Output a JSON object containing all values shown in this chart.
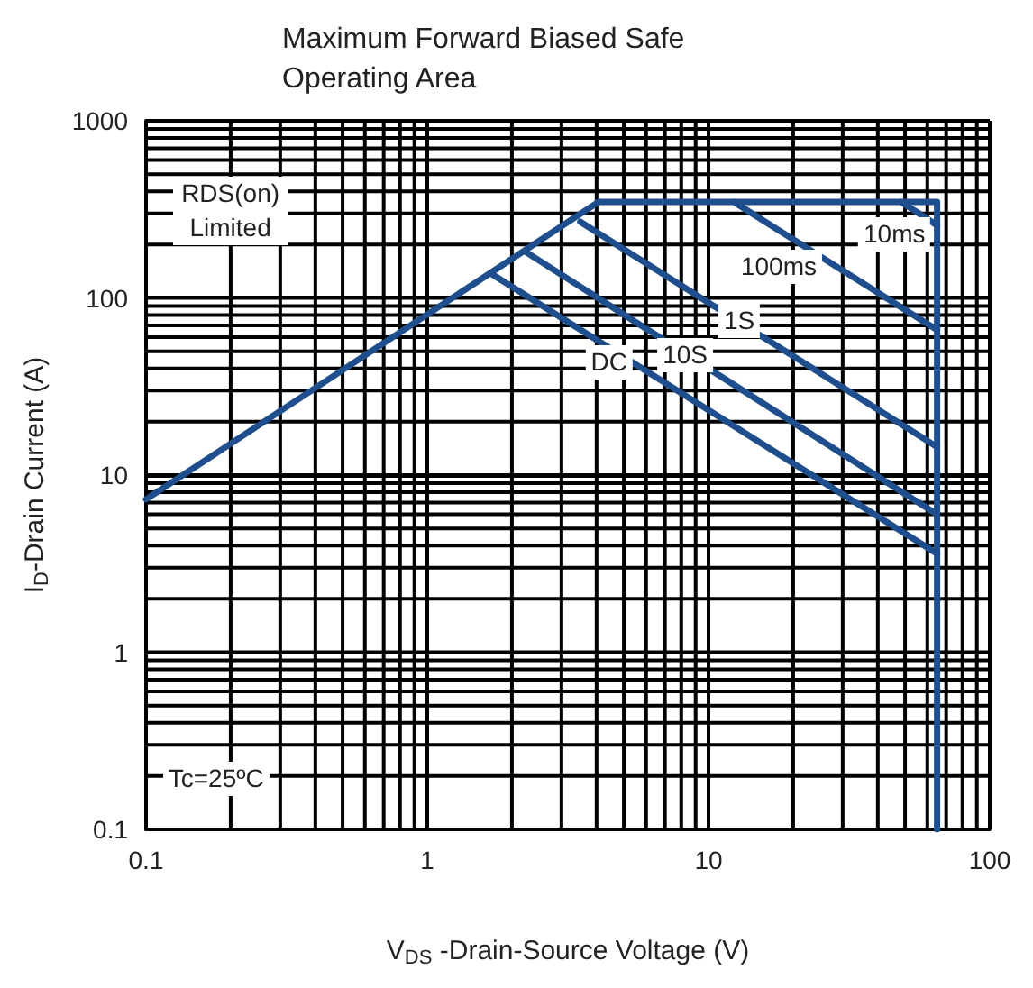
{
  "chart_data": {
    "type": "line",
    "title": "Maximum Forward Biased Safe Operating Area",
    "xlabel": "V$_{DS}$ -Drain-Source Voltage (V)",
    "ylabel": "I$_{D}$-Drain Current (A)",
    "log": "xy",
    "xlim": [
      0.1,
      100
    ],
    "ylim": [
      0.1,
      1000
    ],
    "xticks": [
      0.1,
      1,
      10,
      100
    ],
    "yticks": [
      0.1,
      1,
      10,
      100,
      1000
    ],
    "grid": true,
    "marker": "none",
    "line_style": "solid",
    "series": [
      {
        "color": "#1f4e8c",
        "x": [
          0.1,
          4.06
        ],
        "values": [
          7.3,
          348
        ]
      },
      {
        "color": "#1f4e8c",
        "x": [
          4.06,
          65,
          65
        ],
        "values": [
          348,
          348,
          0.1
        ]
      },
      {
        "color": "#1f4e8c",
        "x": [
          48.5,
          65
        ],
        "values": [
          348,
          257
        ]
      },
      {
        "color": "#1f4e8c",
        "x": [
          12.3,
          65
        ],
        "values": [
          348,
          66
        ]
      },
      {
        "color": "#1f4e8c",
        "x": [
          3.5,
          65
        ],
        "values": [
          269,
          14.4
        ]
      },
      {
        "color": "#1f4e8c",
        "x": [
          2.25,
          65
        ],
        "values": [
          181,
          6
        ]
      },
      {
        "color": "#1f4e8c",
        "x": [
          1.7,
          65
        ],
        "values": [
          136,
          3.6
        ]
      }
    ],
    "annotations": [
      "RDS(on) Limited",
      "10ms",
      "100ms",
      "1S",
      "10S",
      "DC",
      "Tc=25ºC"
    ]
  }
}
